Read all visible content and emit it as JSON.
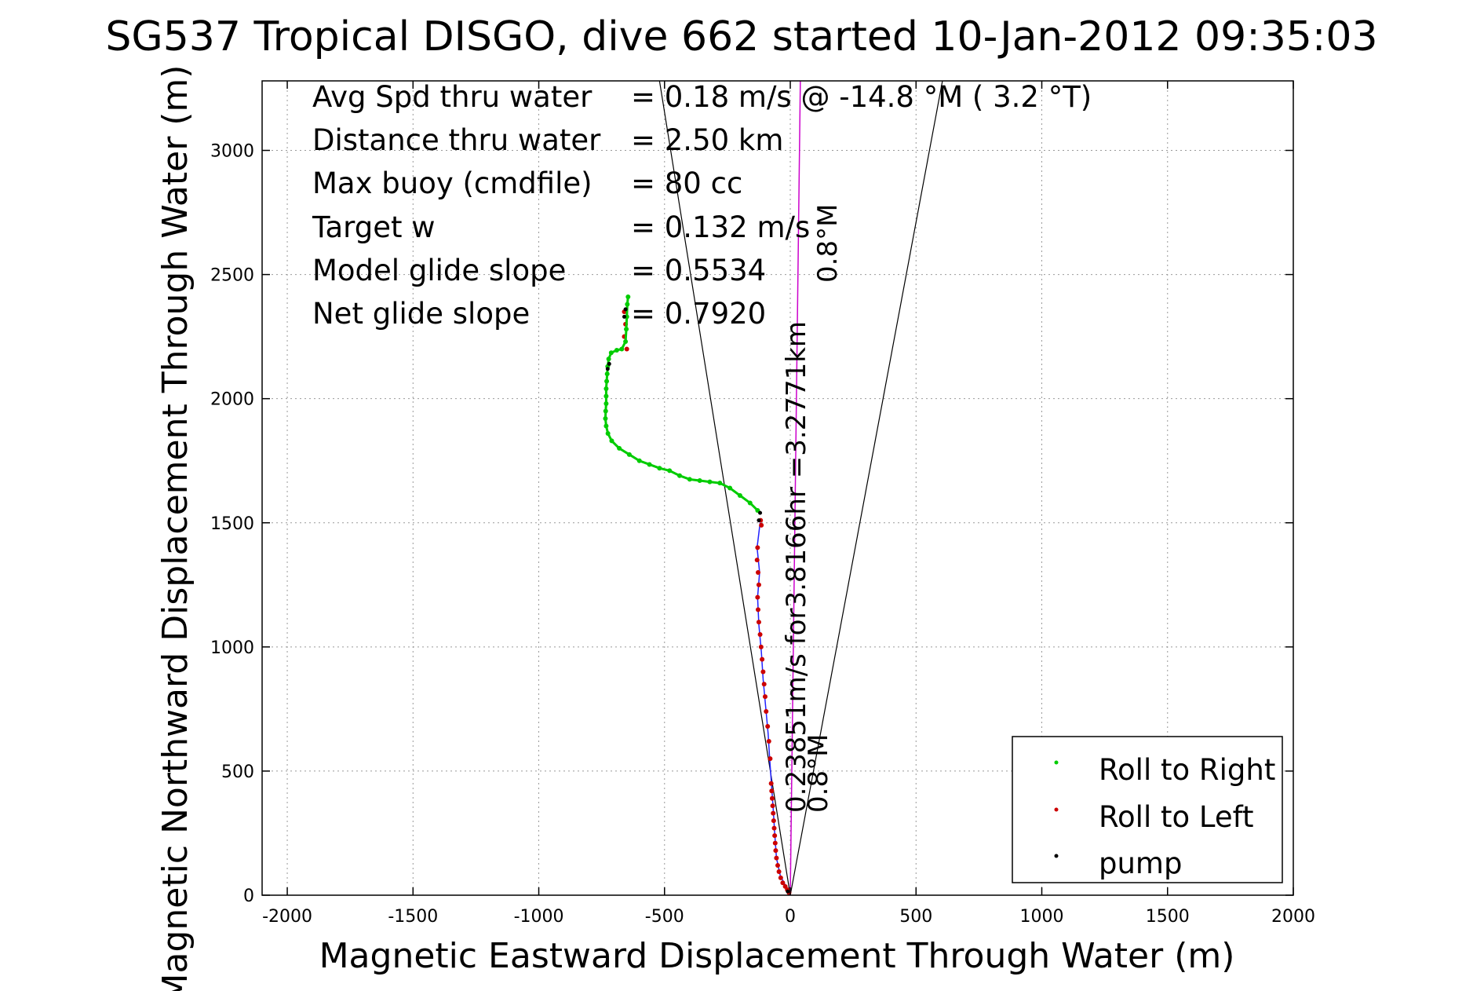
{
  "chart_data": {
    "type": "scatter",
    "title": "SG537 Tropical DISGO, dive 662 started 10-Jan-2012 09:35:03",
    "xlabel": "Magnetic Eastward Displacement Through Water (m)",
    "ylabel": "Magnetic Northward Displacement Through Water (m)",
    "xlim": [
      -2100,
      2000
    ],
    "ylim": [
      0,
      3280
    ],
    "xticks": [
      -2000,
      -1500,
      -1000,
      -500,
      0,
      500,
      1000,
      1500,
      2000
    ],
    "yticks": [
      0,
      500,
      1000,
      1500,
      2000,
      2500,
      3000
    ],
    "grid": true,
    "legend_position": "bottom-right",
    "legend": [
      {
        "label": "Roll to Right",
        "color": "#00cc00"
      },
      {
        "label": "Roll to Left",
        "color": "#cc0000"
      },
      {
        "label": "pump",
        "color": "#000000"
      }
    ],
    "stats": [
      {
        "label": "Avg Spd thru water",
        "value": "=  0.18 m/s @ -14.8 °M (  3.2 °T)"
      },
      {
        "label": "Distance thru water",
        "value": "=  2.50 km"
      },
      {
        "label": "Max buoy (cmdfile)",
        "value": "= 80 cc"
      },
      {
        "label": "Target w",
        "value": "= 0.132 m/s"
      },
      {
        "label": "Model glide slope",
        "value": "= 0.5534"
      },
      {
        "label": "Net glide slope",
        "value": "= 0.7920"
      }
    ],
    "annotations": {
      "current_vector": "0.23851m/s for3.8166hr =3.2771km",
      "heading_top": "0.8°M",
      "heading_bottom": "0.8°M"
    },
    "cone_lines": [
      {
        "from": [
          0,
          0
        ],
        "to": [
          -520,
          3280
        ]
      },
      {
        "from": [
          0,
          0
        ],
        "to": [
          605,
          3280
        ]
      }
    ],
    "heading_line": {
      "from": [
        0,
        0
      ],
      "to": [
        40,
        3280
      ],
      "color": "#cc00cc"
    },
    "track": {
      "color": "#2222ff",
      "points": [
        [
          0,
          0
        ],
        [
          -15,
          30
        ],
        [
          -40,
          80
        ],
        [
          -55,
          150
        ],
        [
          -62,
          250
        ],
        [
          -68,
          350
        ],
        [
          -75,
          450
        ],
        [
          -82,
          550
        ],
        [
          -88,
          650
        ],
        [
          -98,
          760
        ],
        [
          -108,
          870
        ],
        [
          -115,
          980
        ],
        [
          -125,
          1090
        ],
        [
          -130,
          1200
        ],
        [
          -122,
          1300
        ],
        [
          -132,
          1400
        ],
        [
          -120,
          1500
        ]
      ]
    },
    "series": [
      {
        "name": "Roll to Left",
        "color": "#cc0000",
        "points": [
          [
            -5,
            10
          ],
          [
            -12,
            22
          ],
          [
            -20,
            35
          ],
          [
            -30,
            50
          ],
          [
            -38,
            70
          ],
          [
            -45,
            95
          ],
          [
            -50,
            120
          ],
          [
            -55,
            150
          ],
          [
            -58,
            180
          ],
          [
            -60,
            210
          ],
          [
            -62,
            240
          ],
          [
            -64,
            270
          ],
          [
            -66,
            300
          ],
          [
            -68,
            330
          ],
          [
            -70,
            360
          ],
          [
            -72,
            390
          ],
          [
            -74,
            420
          ],
          [
            -76,
            450
          ],
          [
            -80,
            550
          ],
          [
            -85,
            620
          ],
          [
            -90,
            680
          ],
          [
            -96,
            740
          ],
          [
            -100,
            800
          ],
          [
            -104,
            850
          ],
          [
            -108,
            900
          ],
          [
            -112,
            950
          ],
          [
            -116,
            1000
          ],
          [
            -120,
            1050
          ],
          [
            -125,
            1100
          ],
          [
            -128,
            1150
          ],
          [
            -130,
            1200
          ],
          [
            -125,
            1250
          ],
          [
            -128,
            1300
          ],
          [
            -132,
            1350
          ],
          [
            -130,
            1400
          ],
          [
            -115,
            1490
          ],
          [
            -118,
            1510
          ],
          [
            -650,
            2200
          ],
          [
            -660,
            2250
          ],
          [
            -655,
            2300
          ],
          [
            -660,
            2350
          ]
        ]
      },
      {
        "name": "Roll to Right",
        "color": "#00cc00",
        "points": [
          [
            -130,
            1550
          ],
          [
            -160,
            1580
          ],
          [
            -200,
            1610
          ],
          [
            -240,
            1640
          ],
          [
            -280,
            1660
          ],
          [
            -320,
            1665
          ],
          [
            -360,
            1670
          ],
          [
            -400,
            1675
          ],
          [
            -440,
            1690
          ],
          [
            -480,
            1710
          ],
          [
            -520,
            1720
          ],
          [
            -560,
            1735
          ],
          [
            -600,
            1750
          ],
          [
            -640,
            1775
          ],
          [
            -680,
            1800
          ],
          [
            -710,
            1830
          ],
          [
            -725,
            1860
          ],
          [
            -732,
            1890
          ],
          [
            -735,
            1920
          ],
          [
            -734,
            1950
          ],
          [
            -732,
            1980
          ],
          [
            -732,
            2010
          ],
          [
            -732,
            2040
          ],
          [
            -730,
            2070
          ],
          [
            -728,
            2100
          ],
          [
            -726,
            2130
          ],
          [
            -722,
            2160
          ],
          [
            -712,
            2185
          ],
          [
            -690,
            2195
          ],
          [
            -670,
            2200
          ],
          [
            -655,
            2230
          ],
          [
            -652,
            2280
          ],
          [
            -650,
            2330
          ],
          [
            -648,
            2380
          ],
          [
            -645,
            2410
          ]
        ]
      },
      {
        "name": "pump",
        "color": "#000000",
        "points": [
          [
            -10,
            15
          ],
          [
            -125,
            1510
          ],
          [
            -120,
            1540
          ],
          [
            -720,
            2140
          ],
          [
            -726,
            2120
          ],
          [
            -660,
            2330
          ],
          [
            -655,
            2360
          ]
        ]
      }
    ]
  }
}
